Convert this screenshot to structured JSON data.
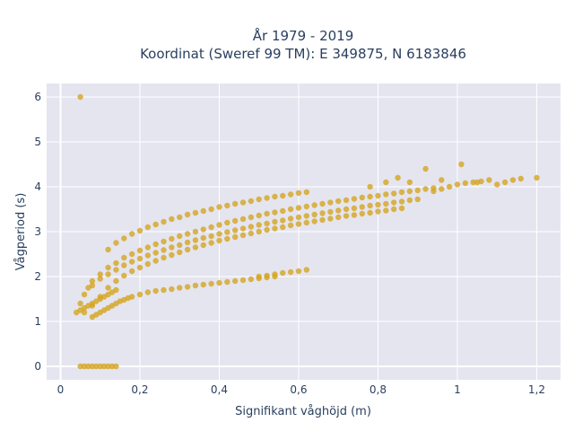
{
  "chart_data": {
    "type": "scatter",
    "title_lines": [
      "År 1979 - 2019",
      "Koordinat (Sweref 99 TM): E 349875, N 6183846"
    ],
    "xlabel": "Signifikant våghöjd (m)",
    "ylabel": "Vågperiod (s)",
    "xlim": [
      -0.035,
      1.26
    ],
    "ylim": [
      -0.3,
      6.3
    ],
    "x_ticks": [
      0,
      0.2,
      0.4,
      0.6,
      0.8,
      1,
      1.2
    ],
    "x_tick_labels": [
      "0",
      "0,2",
      "0,4",
      "0,6",
      "0,8",
      "1",
      "1,2"
    ],
    "y_ticks": [
      0,
      1,
      2,
      3,
      4,
      5,
      6
    ],
    "y_tick_labels": [
      "0",
      "1",
      "2",
      "3",
      "4",
      "5",
      "6"
    ],
    "grid": true,
    "marker_color": "#d4a520",
    "series": [
      {
        "x": [
          0.05,
          0.06,
          0.07,
          0.08,
          0.09,
          0.1,
          0.11,
          0.12,
          0.13,
          0.14,
          0.05,
          0.06,
          0.07,
          0.08,
          0.1,
          0.12,
          0.14,
          0.16,
          0.18,
          0.2,
          0.22,
          0.24,
          0.26,
          0.28,
          0.3,
          0.32,
          0.34,
          0.36,
          0.38,
          0.4,
          0.42,
          0.44,
          0.46,
          0.48,
          0.5,
          0.52,
          0.54,
          0.56,
          0.58,
          0.6,
          0.62,
          0.64,
          0.66,
          0.68,
          0.7,
          0.72,
          0.74,
          0.76,
          0.78,
          0.8,
          0.82,
          0.84,
          0.86,
          0.88,
          0.9,
          0.92,
          0.94,
          0.08,
          0.1,
          0.12,
          0.14,
          0.16,
          0.18,
          0.2,
          0.22,
          0.24,
          0.26,
          0.28,
          0.3,
          0.32,
          0.34,
          0.36,
          0.38,
          0.4,
          0.42,
          0.44,
          0.46,
          0.48,
          0.5,
          0.52,
          0.54,
          0.56,
          0.58,
          0.6,
          0.62,
          0.64,
          0.66,
          0.68,
          0.7,
          0.72,
          0.74,
          0.76,
          0.78,
          0.8,
          0.82,
          0.84,
          0.86,
          0.88,
          0.9,
          0.06,
          0.08,
          0.1,
          0.12,
          0.14,
          0.16,
          0.18,
          0.2,
          0.22,
          0.24,
          0.26,
          0.28,
          0.3,
          0.32,
          0.34,
          0.36,
          0.38,
          0.4,
          0.42,
          0.44,
          0.46,
          0.48,
          0.5,
          0.52,
          0.54,
          0.56,
          0.58,
          0.6,
          0.62,
          0.64,
          0.66,
          0.68,
          0.7,
          0.72,
          0.74,
          0.76,
          0.78,
          0.8,
          0.82,
          0.84,
          0.86,
          0.12,
          0.14,
          0.16,
          0.18,
          0.2,
          0.22,
          0.24,
          0.26,
          0.28,
          0.3,
          0.32,
          0.34,
          0.36,
          0.38,
          0.4,
          0.42,
          0.44,
          0.46,
          0.48,
          0.5,
          0.52,
          0.54,
          0.56,
          0.58,
          0.6,
          0.62,
          0.08,
          0.09,
          0.1,
          0.11,
          0.12,
          0.13,
          0.14,
          0.15,
          0.16,
          0.17,
          0.18,
          0.2,
          0.22,
          0.24,
          0.26,
          0.28,
          0.3,
          0.32,
          0.34,
          0.36,
          0.38,
          0.4,
          0.42,
          0.44,
          0.46,
          0.48,
          0.5,
          0.52,
          0.54,
          0.5,
          0.52,
          0.54,
          0.56,
          0.58,
          0.6,
          0.62,
          0.04,
          0.05,
          0.06,
          0.07,
          0.08,
          0.09,
          0.1,
          0.11,
          0.12,
          0.13,
          0.14,
          0.05,
          0.94,
          0.96,
          0.98,
          1.0,
          1.02,
          1.04,
          1.06,
          1.08,
          1.1,
          1.12,
          1.14,
          1.16,
          1.2,
          0.78,
          0.82,
          0.85,
          0.88,
          0.92,
          0.96,
          1.01,
          1.05
        ],
        "y": [
          0,
          0,
          0,
          0,
          0,
          0,
          0,
          0,
          0,
          0,
          1.4,
          1.6,
          1.75,
          1.9,
          2.05,
          2.2,
          2.3,
          2.42,
          2.5,
          2.58,
          2.65,
          2.72,
          2.78,
          2.84,
          2.9,
          2.95,
          3.0,
          3.05,
          3.1,
          3.15,
          3.2,
          3.24,
          3.28,
          3.32,
          3.36,
          3.4,
          3.43,
          3.46,
          3.5,
          3.53,
          3.56,
          3.59,
          3.62,
          3.65,
          3.68,
          3.7,
          3.73,
          3.76,
          3.78,
          3.8,
          3.83,
          3.85,
          3.88,
          3.9,
          3.92,
          3.95,
          3.97,
          1.8,
          1.95,
          2.05,
          2.15,
          2.25,
          2.33,
          2.4,
          2.47,
          2.53,
          2.59,
          2.65,
          2.7,
          2.76,
          2.81,
          2.86,
          2.9,
          2.95,
          2.99,
          3.03,
          3.07,
          3.11,
          3.15,
          3.18,
          3.22,
          3.25,
          3.29,
          3.32,
          3.35,
          3.38,
          3.41,
          3.44,
          3.47,
          3.5,
          3.52,
          3.55,
          3.58,
          3.6,
          3.62,
          3.65,
          3.67,
          3.7,
          3.72,
          1.2,
          1.35,
          1.55,
          1.75,
          1.9,
          2.02,
          2.12,
          2.2,
          2.28,
          2.35,
          2.42,
          2.48,
          2.54,
          2.6,
          2.65,
          2.7,
          2.75,
          2.8,
          2.84,
          2.88,
          2.92,
          2.96,
          3.0,
          3.04,
          3.07,
          3.1,
          3.14,
          3.17,
          3.2,
          3.23,
          3.26,
          3.29,
          3.32,
          3.35,
          3.37,
          3.4,
          3.42,
          3.45,
          3.47,
          3.5,
          3.52,
          2.6,
          2.75,
          2.85,
          2.95,
          3.02,
          3.1,
          3.16,
          3.22,
          3.28,
          3.32,
          3.38,
          3.42,
          3.46,
          3.5,
          3.55,
          3.58,
          3.62,
          3.65,
          3.68,
          3.72,
          3.75,
          3.78,
          3.8,
          3.83,
          3.86,
          3.88,
          1.1,
          1.15,
          1.2,
          1.25,
          1.3,
          1.35,
          1.4,
          1.45,
          1.48,
          1.52,
          1.55,
          1.6,
          1.65,
          1.68,
          1.7,
          1.72,
          1.75,
          1.77,
          1.8,
          1.82,
          1.84,
          1.86,
          1.88,
          1.9,
          1.92,
          1.94,
          1.96,
          1.98,
          2.0,
          2.0,
          2.02,
          2.05,
          2.08,
          2.1,
          2.12,
          2.15,
          1.2,
          1.25,
          1.3,
          1.35,
          1.4,
          1.45,
          1.5,
          1.55,
          1.6,
          1.65,
          1.7,
          6.0,
          3.9,
          3.95,
          4.0,
          4.05,
          4.08,
          4.1,
          4.12,
          4.15,
          4.05,
          4.1,
          4.15,
          4.18,
          4.2,
          4.0,
          4.1,
          4.2,
          4.1,
          4.4,
          4.15,
          4.5,
          4.1
        ]
      }
    ]
  }
}
